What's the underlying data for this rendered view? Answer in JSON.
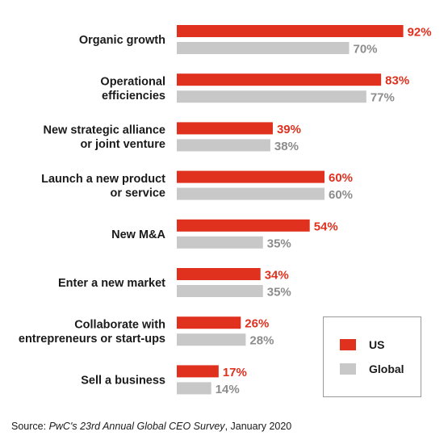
{
  "colors": {
    "us": "#e0301e",
    "global": "#c8c8c8",
    "us_text": "#e0301e",
    "global_text": "#8c8c8c"
  },
  "chart_data": {
    "type": "bar",
    "orientation": "horizontal",
    "categories": [
      [
        "Organic growth"
      ],
      [
        "Operational",
        "efficiencies"
      ],
      [
        "New strategic alliance",
        "or joint venture"
      ],
      [
        "Launch a new product",
        "or service"
      ],
      [
        "New M&A"
      ],
      [
        "Enter a new market"
      ],
      [
        "Collaborate with",
        "entrepreneurs or start-ups"
      ],
      [
        "Sell a business"
      ]
    ],
    "series": [
      {
        "name": "US",
        "values": [
          92,
          83,
          39,
          60,
          54,
          34,
          26,
          17
        ]
      },
      {
        "name": "Global",
        "values": [
          70,
          77,
          38,
          60,
          35,
          35,
          28,
          14
        ]
      }
    ],
    "value_suffix": "%",
    "xlim": [
      0,
      100
    ],
    "grid": false,
    "legend": "bottom-right"
  },
  "legend": {
    "us_label": "US",
    "global_label": "Global"
  },
  "source": {
    "prefix": "Source: ",
    "title": "PwC's 23rd Annual Global CEO Survey",
    "suffix": ", January 2020"
  }
}
